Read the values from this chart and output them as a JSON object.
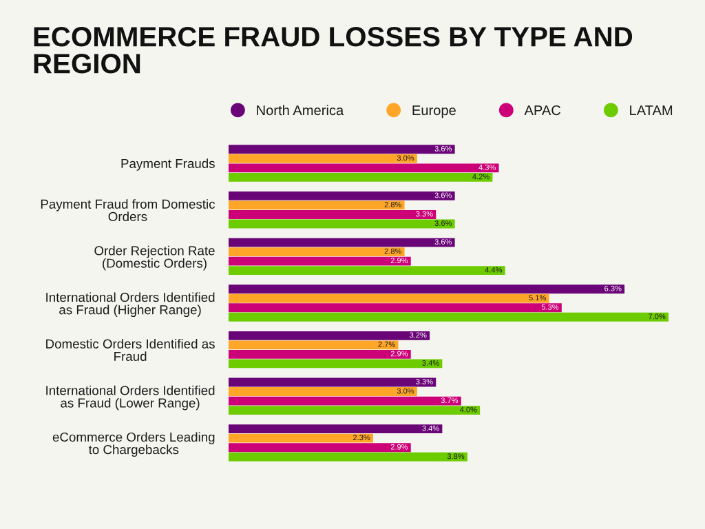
{
  "chart_data": {
    "type": "bar",
    "orientation": "horizontal",
    "title": "ECOMMERCE FRAUD LOSSES BY TYPE AND REGION",
    "categories": [
      "Payment Frauds",
      "Payment Fraud from Domestic\nOrders",
      "Order Rejection Rate\n(Domestic Orders)",
      "International Orders Identified\nas Fraud (Higher Range)",
      "Domestic Orders Identified as\nFraud",
      "International Orders Identified\nas Fraud (Lower Range)",
      "eCommerce Orders Leading\nto Chargebacks"
    ],
    "series": [
      {
        "name": "North America",
        "color": "#6a0578",
        "values": [
          3.6,
          3.6,
          3.6,
          6.3,
          3.2,
          3.3,
          3.4
        ],
        "value_labels": [
          "3.6%",
          "3.6%",
          "3.6%",
          "6.3%",
          "3.2%",
          "3.3%",
          "3.4%"
        ]
      },
      {
        "name": "Europe",
        "color": "#ffa629",
        "values": [
          3.0,
          2.8,
          2.8,
          5.1,
          2.7,
          3.0,
          2.3
        ],
        "value_labels": [
          "3.0%",
          "2.8%",
          "2.8%",
          "5.1%",
          "2.7%",
          "3.0%",
          "2.3%"
        ]
      },
      {
        "name": "APAC",
        "color": "#cc0077",
        "values": [
          4.3,
          3.3,
          2.9,
          5.3,
          2.9,
          3.7,
          2.9
        ],
        "value_labels": [
          "4.3%",
          "3.3%",
          "2.9%",
          "5.3%",
          "2.9%",
          "3.7%",
          "2.9%"
        ]
      },
      {
        "name": "LATAM",
        "color": "#6dcc00",
        "values": [
          4.2,
          3.6,
          4.4,
          7.0,
          3.4,
          4.0,
          3.8
        ],
        "value_labels": [
          "4.2%",
          "3.6%",
          "4.4%",
          "7.0%",
          "3.4%",
          "4.0%",
          "3.8%"
        ]
      }
    ],
    "xlim": [
      0,
      7.0
    ],
    "tick_labels": "y",
    "legend": "top"
  }
}
